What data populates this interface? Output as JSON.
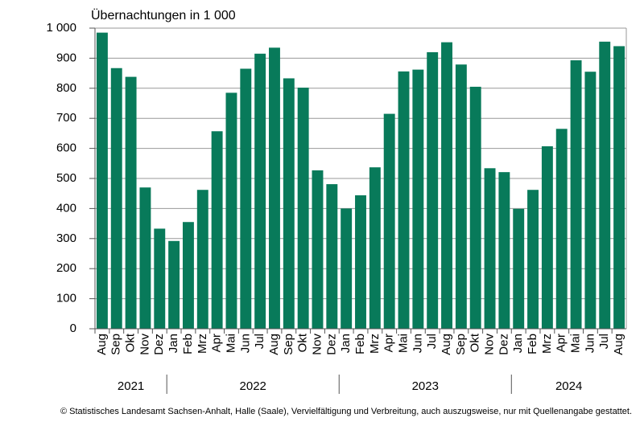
{
  "chart_data": {
    "type": "bar",
    "title": "Übernachtungen in 1 000",
    "categories": [
      "Aug",
      "Sep",
      "Okt",
      "Nov",
      "Dez",
      "Jan",
      "Feb",
      "Mrz",
      "Apr",
      "Mai",
      "Jun",
      "Jul",
      "Aug",
      "Sep",
      "Okt",
      "Nov",
      "Dez",
      "Jan",
      "Feb",
      "Mrz",
      "Apr",
      "Mai",
      "Jun",
      "Jul",
      "Aug",
      "Sep",
      "Okt",
      "Nov",
      "Dez",
      "Jan",
      "Feb",
      "Mrz",
      "Apr",
      "Mai",
      "Jun",
      "Jul",
      "Aug"
    ],
    "years": [
      "2021",
      "2022",
      "2023",
      "2024"
    ],
    "values": [
      985,
      867,
      838,
      470,
      333,
      292,
      355,
      462,
      657,
      785,
      865,
      915,
      935,
      833,
      802,
      527,
      481,
      400,
      444,
      537,
      715,
      856,
      862,
      920,
      953,
      879,
      805,
      534,
      521,
      399,
      462,
      607,
      665,
      893,
      855,
      955,
      940
    ],
    "color": "#087a5a",
    "ylim": [
      0,
      1000
    ],
    "yticks": [
      0,
      100,
      200,
      300,
      400,
      500,
      600,
      700,
      800,
      900,
      {
        "value": 1000,
        "label": "1 000"
      }
    ],
    "grid": true,
    "source": "© Statistisches Landesamt Sachsen-Anhalt, Halle (Saale), Vervielfältigung und Verbreitung, auch auszugsweise, nur mit Quellenangabe gestattet."
  }
}
